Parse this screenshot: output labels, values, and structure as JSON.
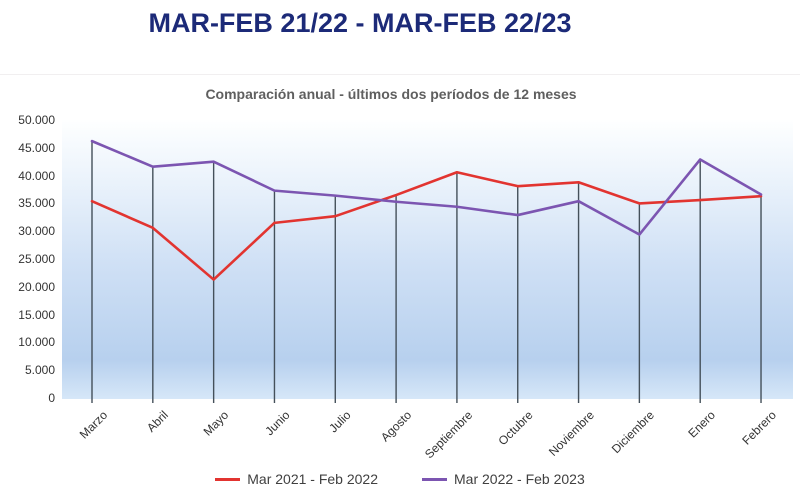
{
  "header": {
    "title": "MAR-FEB 21/22 - MAR-FEB 22/23"
  },
  "chart": {
    "subtitle": "Comparación  anual - últimos dos períodos de 12 meses"
  },
  "chart_data": {
    "type": "line",
    "title": "Comparación  anual - últimos dos períodos de 12 meses",
    "categories": [
      "Marzo",
      "Abril",
      "Mayo",
      "Junio",
      "Julio",
      "Agosto",
      "Septiembre",
      "Octubre",
      "Noviembre",
      "Diciembre",
      "Enero",
      "Febrero"
    ],
    "series": [
      {
        "name": "Mar 2021 - Feb 2022",
        "color": "#e23430",
        "values": [
          35400,
          30600,
          21300,
          31500,
          32700,
          36500,
          40600,
          38100,
          38800,
          35000,
          35600,
          36300
        ]
      },
      {
        "name": "Mar 2022 - Feb 2023",
        "color": "#7c55b1",
        "values": [
          46200,
          41600,
          42500,
          37300,
          36400,
          35300,
          34400,
          32900,
          35400,
          29400,
          42900,
          36600
        ]
      }
    ],
    "ylim": [
      0,
      50000
    ],
    "y_tick_step": 5000,
    "y_tick_labels_desc": [
      "50.000",
      "45.000",
      "40.000",
      "35.000",
      "30.000",
      "25.000",
      "20.000",
      "15.000",
      "10.000",
      "5.000",
      "0"
    ],
    "xlabel": "",
    "ylabel": "",
    "grid": "vertical-drop-lines-from-max-series",
    "legend_position": "bottom"
  },
  "colors": {
    "title_text": "#1c2a78",
    "subtitle_text": "#5f5f5f",
    "axis_text": "#333333",
    "drop_line": "#44505a",
    "plot_gradient": [
      "#feffff",
      "#eef5fc",
      "#cfe0f5",
      "#b7d0ee",
      "#d6e7f8"
    ]
  }
}
